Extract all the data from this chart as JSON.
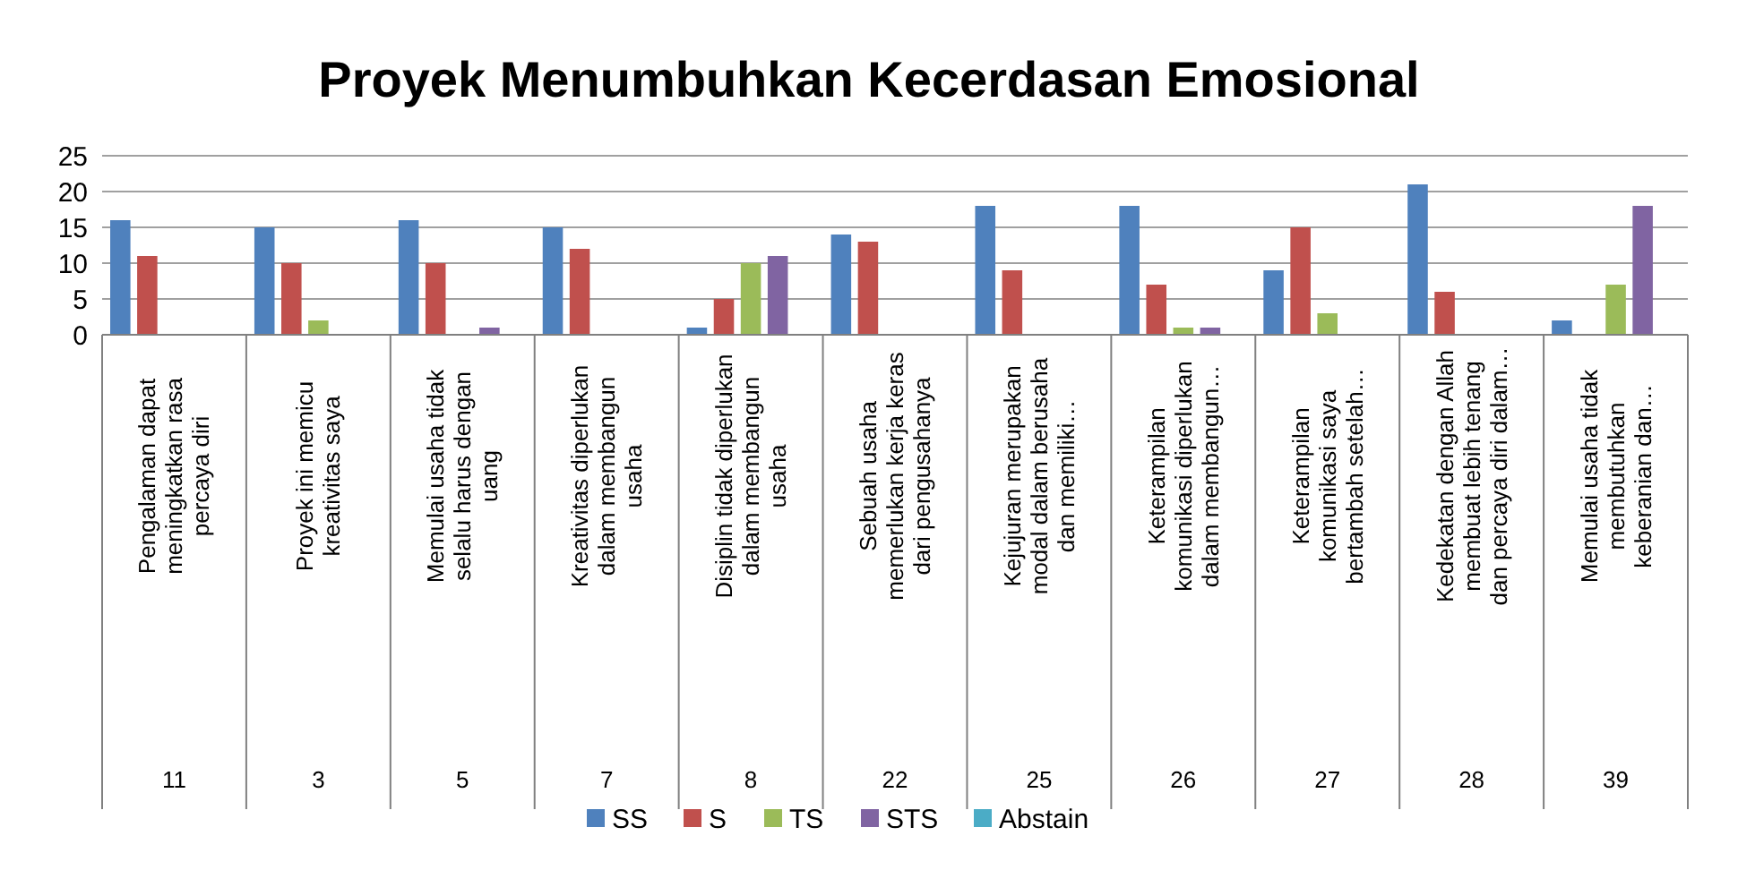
{
  "chart_data": {
    "type": "bar",
    "title": "Proyek Menumbuhkan Kecerdasan Emosional",
    "categories": [
      "Pengalaman dapat\nmeningkatkan rasa\npercaya diri",
      "Proyek ini memicu\nkreativitas saya",
      "Memulai usaha tidak\nselalu harus dengan\nuang",
      "Kreativitas diperlukan\ndalam membangun\nusaha",
      "Disiplin tidak diperlukan\ndalam membangun\nusaha",
      "Sebuah usaha\nmemerlukan kerja keras\ndari pengusahanya",
      "Kejujuran merupakan\nmodal dalam berusaha\ndan memiliki…",
      "Keterampilan\nkomunikasi diperlukan\ndalam membangun…",
      "Keterampilan\nkomunikasi saya\nbertambah setelah…",
      "Kedekatan dengan Allah\nmembuat lebih tenang\ndan percaya diri dalam…",
      "Memulai usaha tidak\nmembutuhkan\nkeberanian dan…"
    ],
    "annotations": [
      "11",
      "3",
      "5",
      "7",
      "8",
      "22",
      "25",
      "26",
      "27",
      "28",
      "39"
    ],
    "series": [
      {
        "name": "SS",
        "color": "#4f81bd",
        "values": [
          16,
          15,
          16,
          15,
          1,
          14,
          18,
          18,
          9,
          21,
          2
        ]
      },
      {
        "name": "S",
        "color": "#c0504d",
        "values": [
          11,
          10,
          10,
          12,
          5,
          13,
          9,
          7,
          15,
          6,
          0
        ]
      },
      {
        "name": "TS",
        "color": "#9bbb59",
        "values": [
          0,
          2,
          0,
          0,
          10,
          0,
          0,
          1,
          3,
          0,
          7
        ]
      },
      {
        "name": "STS",
        "color": "#8064a2",
        "values": [
          0,
          0,
          1,
          0,
          11,
          0,
          0,
          1,
          0,
          0,
          18
        ]
      },
      {
        "name": "Abstain",
        "color": "#4bacc6",
        "values": [
          0,
          0,
          0,
          0,
          0,
          0,
          0,
          0,
          0,
          0,
          0
        ]
      }
    ],
    "ylim": [
      0,
      25
    ],
    "yticks": [
      0,
      5,
      10,
      15,
      20,
      25
    ],
    "grid": "y",
    "legend": "bottom"
  }
}
